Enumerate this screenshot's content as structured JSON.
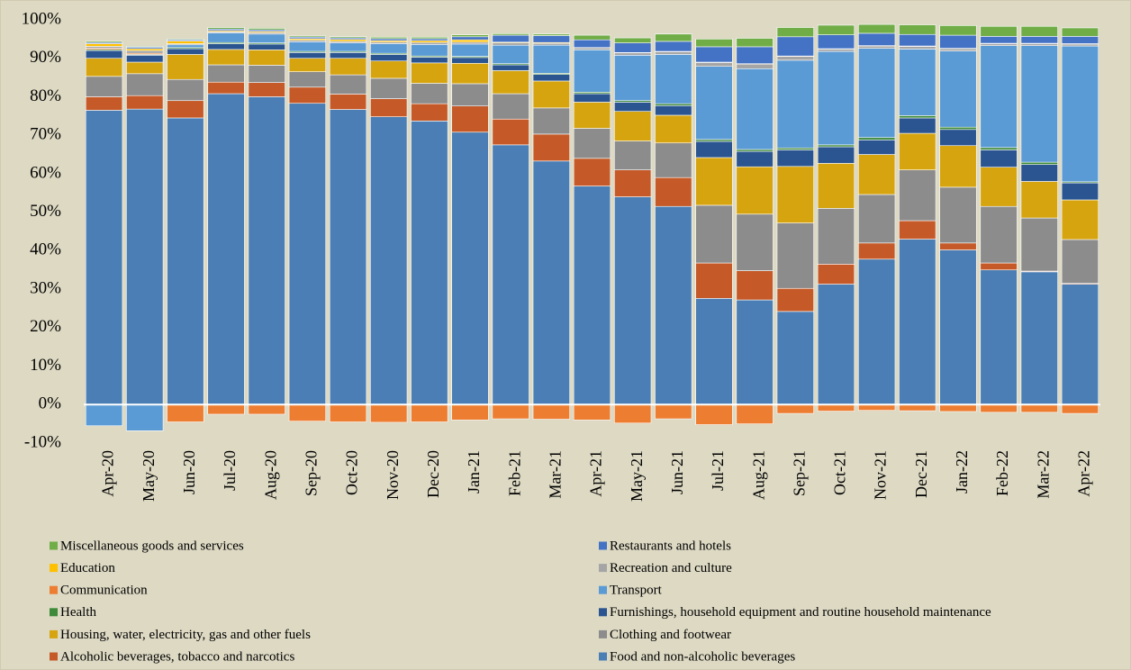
{
  "chart_data": {
    "type": "stacked_bar",
    "categories": [
      "Apr-20",
      "May-20",
      "Jun-20",
      "Jul-20",
      "Aug-20",
      "Sep-20",
      "Oct-20",
      "Nov-20",
      "Dec-20",
      "Jan-21",
      "Feb-21",
      "Mar-21",
      "Apr-21",
      "May-21",
      "Jun-21",
      "Jul-21",
      "Aug-21",
      "Sep-21",
      "Oct-21",
      "Nov-21",
      "Dec-21",
      "Jan-22",
      "Feb-22",
      "Mar-22",
      "Apr-22"
    ],
    "series": [
      {
        "name": "Food and non-alcoholic beverages",
        "color": "#4a7eb4",
        "values": [
          76.5,
          76.8,
          74.5,
          80.8,
          80,
          78.3,
          76.7,
          74.8,
          73.7,
          70.8,
          67.5,
          63.3,
          56.8,
          54,
          51.5,
          27.6,
          27.2,
          24.2,
          31.3,
          37.8,
          43,
          40.2,
          35,
          34.5,
          31.3
        ]
      },
      {
        "name": "Alcoholic beverages, tobacco and narcotics",
        "color": "#c55a28",
        "values": [
          3.5,
          3.5,
          4.5,
          3,
          3.7,
          4.2,
          4,
          4.7,
          4.5,
          6.8,
          6.7,
          7,
          7.2,
          7,
          7.5,
          9.2,
          7.6,
          6,
          5.2,
          4.2,
          4.8,
          1.8,
          1.8,
          0.2,
          0.2
        ]
      },
      {
        "name": "Clothing and footwear",
        "color": "#8c8c8c",
        "values": [
          5.3,
          5.7,
          5.5,
          4.5,
          4.5,
          4,
          5,
          5.3,
          5.3,
          5.8,
          6.6,
          6.8,
          7.8,
          7.5,
          9,
          15,
          14.7,
          17,
          14.5,
          12.6,
          13.2,
          14.5,
          14.7,
          13.8,
          11.4
        ]
      },
      {
        "name": "Housing, water, electricity, gas and other fuels",
        "color": "#d6a40f",
        "values": [
          4.7,
          3,
          6.5,
          4,
          4,
          3.5,
          4.3,
          4.5,
          5.3,
          5.3,
          6,
          7,
          6.8,
          7.7,
          7.2,
          12.4,
          12.3,
          14.7,
          11.7,
          10.4,
          9.5,
          10.8,
          10.2,
          9.5,
          10.3
        ]
      },
      {
        "name": "Furnishings, household equipment and routine household maintenance",
        "color": "#2b5591",
        "values": [
          2,
          1.8,
          1.5,
          1.5,
          1.5,
          1.5,
          1.5,
          1.7,
          1.5,
          1.5,
          1.5,
          1.7,
          2.2,
          2.4,
          2.5,
          4.2,
          4,
          4.3,
          4.3,
          3.8,
          4,
          4.2,
          4.5,
          4.4,
          4.4
        ]
      },
      {
        "name": "Health",
        "color": "#3e8a3a",
        "values": [
          0.3,
          0.2,
          0.3,
          0.3,
          0.3,
          0.3,
          0.3,
          0.3,
          0.3,
          0.3,
          0.3,
          0.3,
          0.4,
          0.4,
          0.5,
          0.5,
          0.5,
          0.5,
          0.5,
          0.6,
          0.6,
          0.6,
          0.6,
          0.6,
          0.3
        ]
      },
      {
        "name": "Transport",
        "color": "#5b9bd5",
        "values": [
          -5.5,
          -6.8,
          0.7,
          2.5,
          2.3,
          2.5,
          2.2,
          2.5,
          3,
          3.2,
          4.8,
          7.3,
          11,
          11.8,
          12.8,
          19,
          21,
          22.8,
          24.3,
          23.2,
          17.3,
          19.8,
          26.5,
          30.3,
          35.3
        ]
      },
      {
        "name": "Communication",
        "color": "#ed7d31",
        "values": [
          0.3,
          0.3,
          -4.5,
          -2.5,
          -2.5,
          -4.3,
          -4.5,
          -4.6,
          -4.5,
          -4,
          -3.7,
          -3.8,
          -4,
          -4.8,
          -3.7,
          -5.2,
          -5,
          -2.3,
          -1.7,
          -1.5,
          -1.6,
          -1.8,
          -2,
          -2,
          -2.3
        ]
      },
      {
        "name": "Recreation and culture",
        "color": "#a5a5a5",
        "values": [
          0.5,
          0.7,
          0.3,
          0.3,
          0.4,
          0.4,
          0.4,
          0.4,
          0.5,
          0.5,
          0.6,
          0.5,
          0.5,
          0.6,
          0.7,
          1,
          1.2,
          1,
          0.6,
          0.6,
          0.7,
          0.6,
          0.5,
          0.5,
          0.5
        ]
      },
      {
        "name": "Education",
        "color": "#ffc000",
        "values": [
          0.7,
          0.5,
          0.7,
          0.3,
          0.3,
          0.4,
          0.5,
          0.4,
          0.5,
          0.6,
          0.2,
          0.2,
          0.1,
          0.1,
          0.1,
          0.1,
          0.1,
          0.1,
          0.1,
          0.1,
          0.1,
          0.1,
          0.1,
          0.1,
          0.1
        ]
      },
      {
        "name": "Restaurants and hotels",
        "color": "#4472c4",
        "values": [
          0.3,
          0.4,
          0.3,
          0.4,
          0.4,
          0.4,
          0.4,
          0.5,
          0.5,
          0.8,
          1.8,
          1.8,
          2,
          2.5,
          2.6,
          4,
          4.4,
          5,
          3.6,
          3.2,
          3,
          3.4,
          1.8,
          1.8,
          1.9
        ]
      },
      {
        "name": "Miscellaneous goods and services",
        "color": "#70ad47",
        "values": [
          0.3,
          0.2,
          0.2,
          0.4,
          0.4,
          0.3,
          0.3,
          0.4,
          0.4,
          0.5,
          0.4,
          0.4,
          1.2,
          1.3,
          1.9,
          2,
          2.2,
          2.4,
          2.5,
          2.3,
          2.5,
          2.5,
          2.6,
          2.6,
          2.2
        ]
      }
    ],
    "ylim": [
      -10,
      100
    ],
    "yticks": [
      {
        "value": -10,
        "label": "-10%"
      },
      {
        "value": 0,
        "label": "0%"
      },
      {
        "value": 10,
        "label": "10%"
      },
      {
        "value": 20,
        "label": "20%"
      },
      {
        "value": 30,
        "label": "30%"
      },
      {
        "value": 40,
        "label": "40%"
      },
      {
        "value": 50,
        "label": "50%"
      },
      {
        "value": 60,
        "label": "60%"
      },
      {
        "value": 70,
        "label": "70%"
      },
      {
        "value": 80,
        "label": "80%"
      },
      {
        "value": 90,
        "label": "90%"
      },
      {
        "value": 100,
        "label": "100%"
      }
    ],
    "legend": "bottom",
    "grid": false
  }
}
